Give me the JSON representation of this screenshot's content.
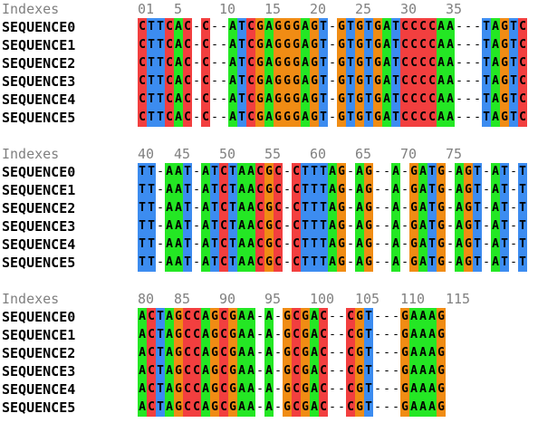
{
  "alignment": {
    "index_label": "Indexes",
    "sequence_names": [
      "SEQUENCE0",
      "SEQUENCE1",
      "SEQUENCE2",
      "SEQUENCE3",
      "SEQUENCE4",
      "SEQUENCE5"
    ],
    "sequence": "CTTCAC-C--ATCGAGGGAGT-GTGTGATCCCCAA---TAGTCTT-AAT-ATCTAACGC-CTTTAG-AG--A-GATG-AGT-AT-TACTAGCCAGCGAA-A-GCGAC--CGT---GAAAG",
    "columns_per_block": 43,
    "blocks": [
      {
        "ticks": [
          "01",
          "5",
          "10",
          "15",
          "20",
          "25",
          "30",
          "35"
        ]
      },
      {
        "ticks": [
          "40",
          "45",
          "50",
          "55",
          "60",
          "65",
          "70",
          "75"
        ]
      },
      {
        "ticks": [
          "80",
          "85",
          "90",
          "95",
          "100",
          "105",
          "110",
          "115"
        ]
      }
    ],
    "base_colors": {
      "A": "#24e724",
      "C": "#f23f3f",
      "G": "#f08c14",
      "T": "#3c8cf0",
      "-": "#ffffff"
    }
  }
}
